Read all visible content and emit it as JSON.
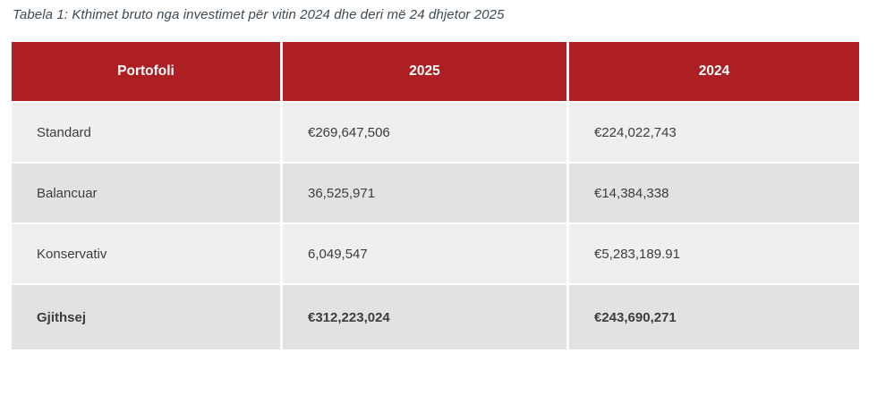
{
  "caption": "Tabela 1: Kthimet bruto nga investimet për vitin 2024 dhe deri më 24 dhjetor 2025",
  "table": {
    "headers": [
      "Portofoli",
      "2025",
      "2024"
    ],
    "rows": [
      [
        "Standard",
        "€269,647,506",
        "€224,022,743"
      ],
      [
        "Balancuar",
        "36,525,971",
        "€14,384,338"
      ],
      [
        "Konservativ",
        "6,049,547",
        "€5,283,189.91"
      ],
      [
        "Gjithsej",
        "€312,223,024",
        "€243,690,271"
      ]
    ]
  },
  "colors": {
    "header_bg": "#AE1F24",
    "header_text": "#FFFFFF",
    "row_light": "#F0EEEF",
    "row_dark": "#E3E2E2",
    "body_text": "#3D3D3D",
    "caption_text": "#3E4A53"
  }
}
